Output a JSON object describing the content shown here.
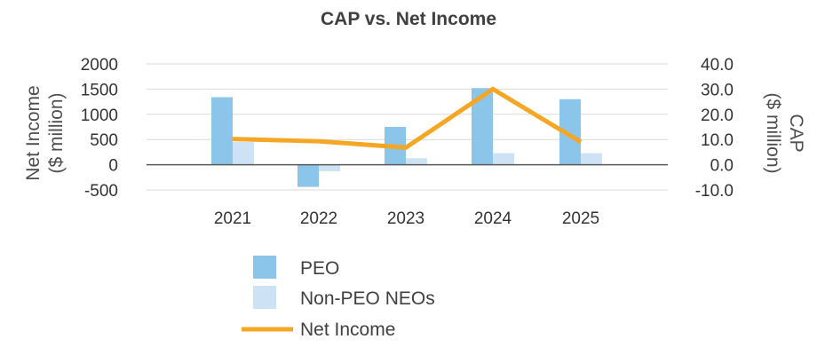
{
  "chart_data": {
    "type": "bar",
    "title": "CAP vs. Net Income",
    "categories": [
      "2021",
      "2022",
      "2023",
      "2024",
      "2025"
    ],
    "series": [
      {
        "name": "PEO",
        "axis": "left",
        "kind": "bar",
        "color": "#8cc5ea",
        "values": [
          1340,
          -440,
          750,
          1520,
          1300
        ]
      },
      {
        "name": "Non-PEO NEOs",
        "axis": "left",
        "kind": "bar",
        "color": "#cde3f5",
        "values": [
          450,
          -130,
          130,
          230,
          230
        ]
      },
      {
        "name": "Net Income",
        "axis": "right",
        "kind": "line",
        "color": "#f5a623",
        "values": [
          10.2,
          9.3,
          6.8,
          30.0,
          9.0
        ]
      }
    ],
    "left_axis": {
      "label_line1": "Net Income",
      "label_line2": "($ million)",
      "ylim": [
        -500,
        2000
      ],
      "ticks": [
        -500,
        0,
        500,
        1000,
        1500,
        2000
      ],
      "tick_labels": [
        "-500",
        "0",
        "500",
        "1000",
        "1500",
        "2000"
      ]
    },
    "right_axis": {
      "label_line1": "CAP",
      "label_line2": "($ million)",
      "ylim": [
        -10,
        40
      ],
      "ticks": [
        -10,
        0,
        10,
        20,
        30,
        40
      ],
      "tick_labels": [
        "-10.0",
        "0.0",
        "10.0",
        "20.0",
        "30.0",
        "40.0"
      ]
    },
    "grid": true,
    "legend": {
      "position": "bottom",
      "items": [
        "PEO",
        "Non-PEO NEOs",
        "Net Income"
      ]
    }
  }
}
